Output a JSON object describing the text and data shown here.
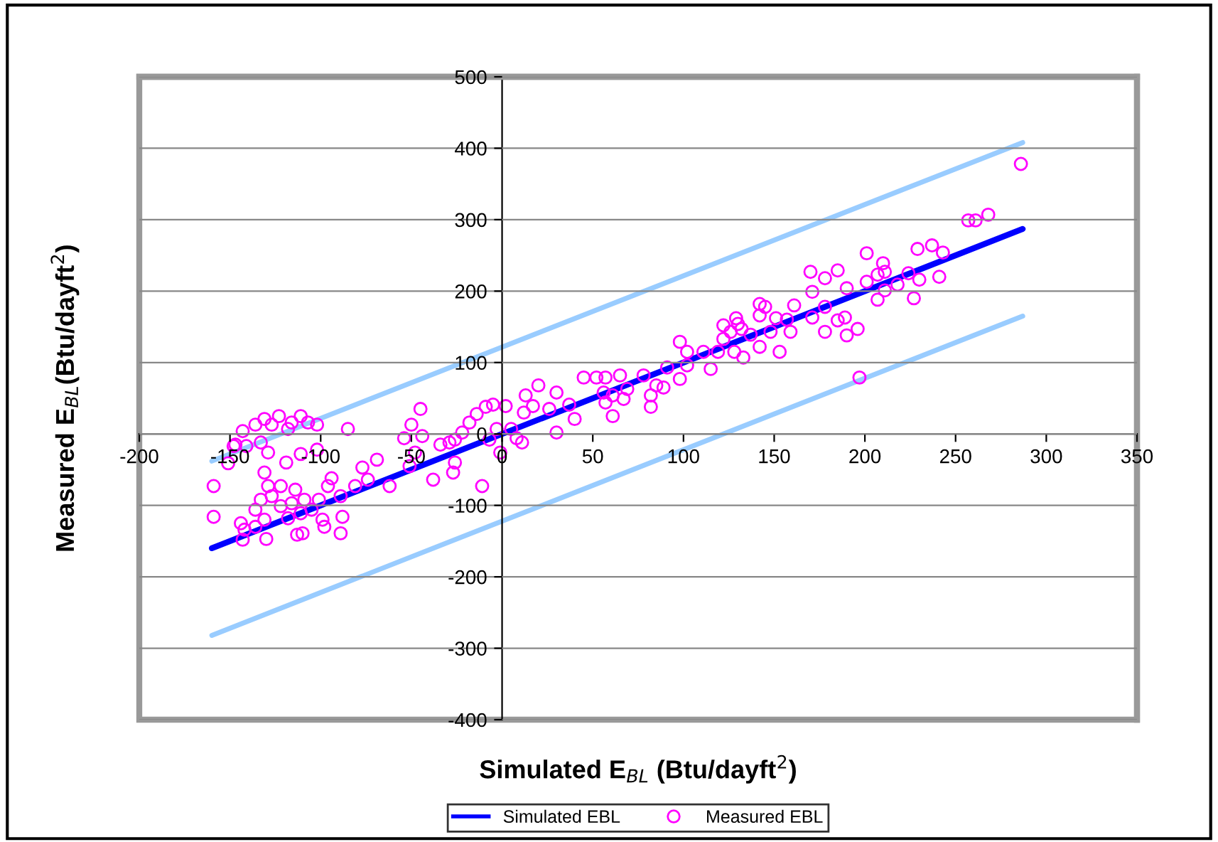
{
  "chart_data": {
    "type": "scatter",
    "xlabel": "Simulated E$_{BL}$ (Btu/dayft$^{2}$)",
    "ylabel": "Measured E$_{BL}$(Btu/dayft$^{2}$)",
    "xlim": [
      -200,
      350
    ],
    "xticks": [
      -200,
      -150,
      -100,
      -50,
      0,
      50,
      100,
      150,
      200,
      250,
      300,
      350
    ],
    "ylim": [
      -400,
      500
    ],
    "yticks": [
      -400,
      -300,
      -200,
      -100,
      0,
      100,
      200,
      300,
      400,
      500
    ],
    "grid": "y",
    "legend": "bottom",
    "series": [
      {
        "type": "line",
        "color": "#99ccff",
        "x": [
          -160,
          287
        ],
        "values": [
          -38,
          408
        ],
        "marker": "none"
      },
      {
        "type": "line",
        "color": "#99ccff",
        "x": [
          -160,
          287
        ],
        "values": [
          -282,
          165
        ],
        "marker": "none"
      },
      {
        "type": "line",
        "name": "Simulated EBL",
        "color": "#0000ff",
        "x": [
          -160,
          287
        ],
        "values": [
          -160,
          287
        ],
        "marker": "none"
      },
      {
        "name": "Measured EBL",
        "color": "#ff00ff",
        "marker": "circle",
        "x": [
          286,
          257,
          261,
          268,
          237,
          229,
          243,
          241,
          230,
          227,
          224,
          218,
          210,
          211,
          207,
          201,
          201,
          207,
          211,
          197,
          196,
          190,
          189,
          190,
          185,
          178,
          170,
          171,
          178,
          185,
          178,
          171,
          161,
          159,
          153,
          157,
          151,
          145,
          142,
          142,
          148,
          142,
          137,
          130,
          129,
          132,
          133,
          128,
          126,
          122,
          122,
          119,
          115,
          111,
          102,
          98,
          102,
          98,
          91,
          89,
          82,
          82,
          85,
          78,
          69,
          67,
          61,
          65,
          57,
          56,
          57,
          52,
          61,
          45,
          37,
          40,
          30,
          30,
          26,
          20,
          17,
          13,
          12,
          11,
          8,
          5,
          2,
          -5,
          -9,
          -14,
          -18,
          -22,
          -26,
          -29,
          -34,
          -26,
          -27,
          -11,
          -1,
          -7,
          -3,
          -45,
          -50,
          -54,
          -48,
          -51,
          -38,
          -44,
          -62,
          -69,
          -77,
          -74,
          -81,
          -85,
          -89,
          -96,
          -101,
          -88,
          -89,
          -98,
          -94,
          -102,
          -102,
          -107,
          -111,
          -116,
          -118,
          -123,
          -127,
          -131,
          -136,
          -143,
          -147,
          -141,
          -133,
          -129,
          -119,
          -111,
          -131,
          -129,
          -122,
          -114,
          -109,
          -116,
          -122,
          -127,
          -133,
          -136,
          -131,
          -136,
          -142,
          -143,
          -130,
          -113,
          -110,
          -159,
          -159,
          -144,
          -151,
          -148,
          -111,
          -105,
          -118,
          -99
        ],
        "values": [
          378,
          299,
          299,
          307,
          264,
          259,
          254,
          220,
          216,
          190,
          225,
          209,
          239,
          227,
          188,
          253,
          213,
          223,
          201,
          79,
          147,
          138,
          163,
          204,
          229,
          218,
          227,
          163,
          143,
          159,
          178,
          199,
          180,
          143,
          115,
          160,
          162,
          178,
          182,
          166,
          143,
          122,
          139,
          154,
          162,
          147,
          107,
          115,
          143,
          152,
          133,
          115,
          91,
          115,
          115,
          129,
          96,
          77,
          93,
          65,
          38,
          54,
          68,
          82,
          63,
          49,
          54,
          82,
          79,
          58,
          44,
          79,
          25,
          79,
          41,
          21,
          58,
          2,
          35,
          68,
          39,
          54,
          30,
          -12,
          -6,
          7,
          39,
          41,
          38,
          28,
          16,
          2,
          -8,
          -12,
          -15,
          -40,
          -54,
          -73,
          -26,
          -8,
          7,
          35,
          13,
          -6,
          -26,
          -45,
          -64,
          -3,
          -73,
          -36,
          -47,
          -64,
          -73,
          7,
          -87,
          -73,
          -92,
          -116,
          -139,
          -130,
          -62,
          -22,
          13,
          16,
          25,
          16,
          7,
          25,
          13,
          21,
          13,
          4,
          -15,
          -17,
          -12,
          -26,
          -40,
          -28,
          -54,
          -73,
          -73,
          -78,
          -92,
          -97,
          -101,
          -87,
          -92,
          -106,
          -120,
          -130,
          -134,
          -148,
          -147,
          -141,
          -139,
          -73,
          -116,
          -125,
          -41,
          -17,
          -111,
          -106,
          -118,
          -120
        ]
      }
    ]
  }
}
